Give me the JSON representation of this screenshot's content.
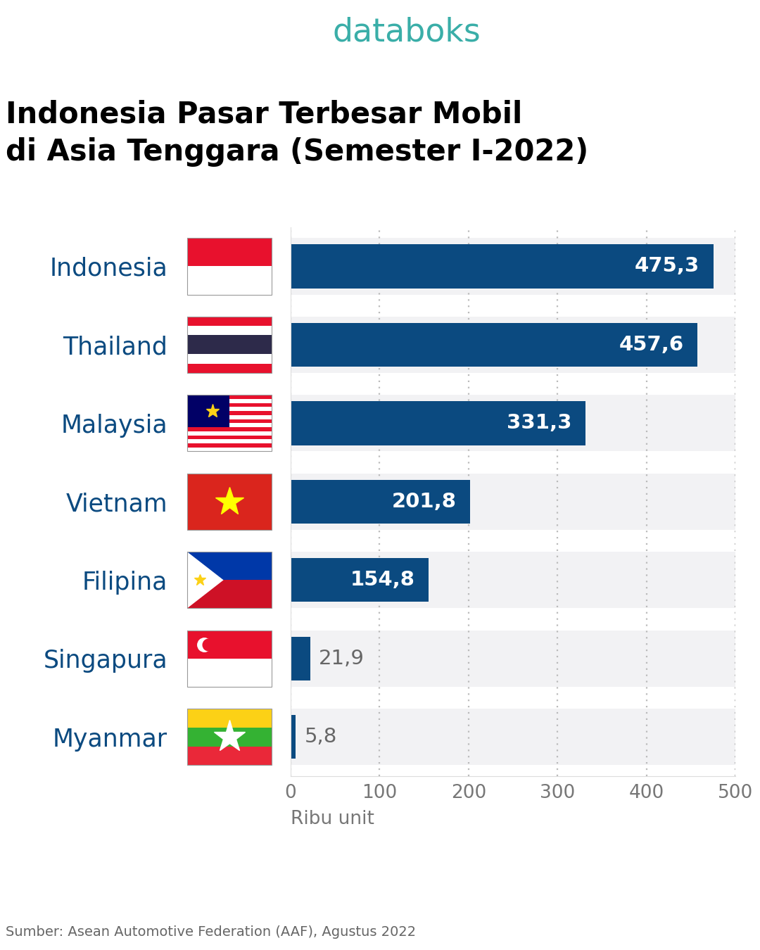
{
  "chart_data": {
    "type": "bar",
    "orientation": "horizontal",
    "logo": "databoks",
    "title": "Indonesia Pasar Terbesar Mobil\ndi Asia Tenggara (Semester I-2022)",
    "categories": [
      "Indonesia",
      "Thailand",
      "Malaysia",
      "Vietnam",
      "Filipina",
      "Singapura",
      "Myanmar"
    ],
    "values": [
      475.3,
      457.6,
      331.3,
      201.8,
      154.8,
      21.9,
      5.8
    ],
    "value_labels": [
      "475,3",
      "457,6",
      "331,3",
      "201,8",
      "154,8",
      "21,9",
      "5,8"
    ],
    "data_labels": true,
    "color": "#0b4a80",
    "xlabel": "Ribu unit",
    "xlim": [
      0,
      500
    ],
    "xticks": [
      0,
      100,
      200,
      300,
      400,
      500
    ],
    "grid": true,
    "source": "Sumber: Asean Automotive Federation (AAF), Agustus 2022"
  }
}
